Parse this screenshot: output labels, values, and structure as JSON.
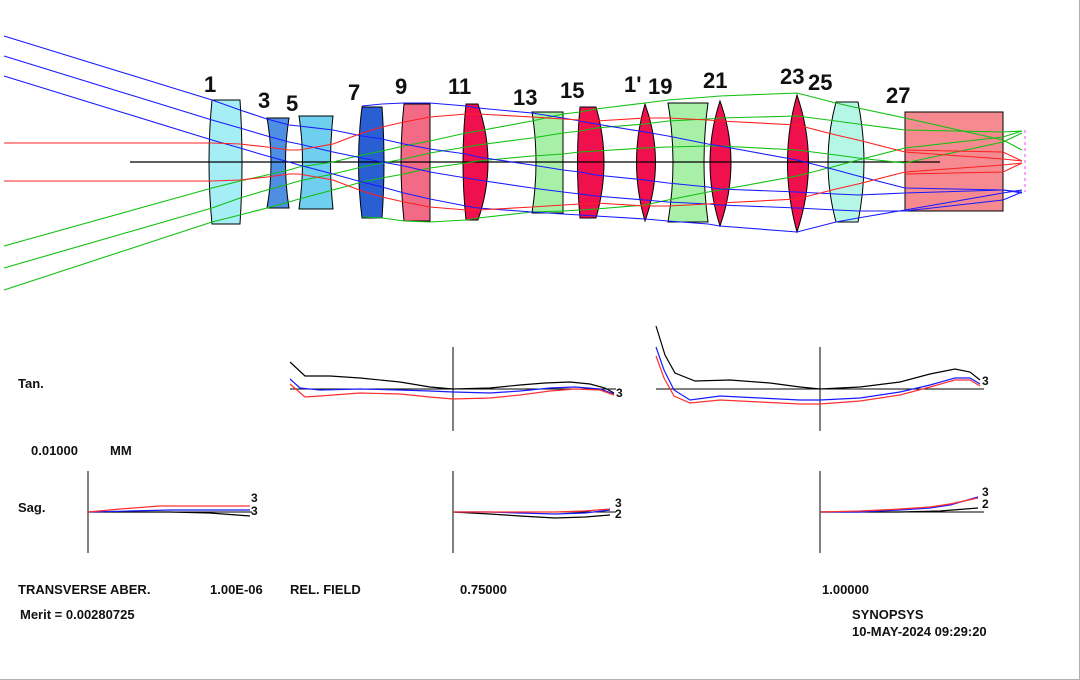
{
  "colors": {
    "ray_axial": "#ff2020",
    "ray_field_mid": "#1a1aff",
    "ray_field_edge": "#10c010",
    "axis": "#000000",
    "curve_black": "#000000",
    "curve_blue": "#1a1aff",
    "curve_red": "#ff3030"
  },
  "surface_labels": [
    "1",
    "3",
    "5",
    "7",
    "9",
    "11",
    "13",
    "15",
    "1'",
    "19",
    "21",
    "23",
    "25",
    "27"
  ],
  "elements": [
    {
      "name": "lens-1",
      "color": "#a6eef6"
    },
    {
      "name": "lens-3",
      "color": "#4f8fe3"
    },
    {
      "name": "lens-5",
      "color": "#6fcfef"
    },
    {
      "name": "lens-7",
      "color": "#2a5fd4"
    },
    {
      "name": "lens-9",
      "color": "#f26a86"
    },
    {
      "name": "lens-11",
      "color": "#f0104e"
    },
    {
      "name": "lens-13",
      "color": "#a8f0a8"
    },
    {
      "name": "lens-15",
      "color": "#f0104e"
    },
    {
      "name": "lens-17",
      "color": "#f0104e"
    },
    {
      "name": "lens-19",
      "color": "#a8f0a8"
    },
    {
      "name": "lens-21",
      "color": "#f0104e"
    },
    {
      "name": "lens-23",
      "color": "#f0104e"
    },
    {
      "name": "lens-25",
      "color": "#b6f6e6"
    },
    {
      "name": "prism-27",
      "color": "#f58a90"
    }
  ],
  "aberration": {
    "tan_label": "Tan.",
    "sag_label": "Sag.",
    "scale_value": "0.01000",
    "scale_unit": "MM",
    "curve_end_labels": [
      "3",
      "2"
    ]
  },
  "footer": {
    "transverse_label": "TRANSVERSE ABER.",
    "wavelength_value": "1.00E-06",
    "rel_field_label": "REL. FIELD",
    "field_mid": "0.75000",
    "field_full": "1.00000",
    "merit": "Merit = 0.00280725",
    "program": "SYNOPSYS",
    "timestamp": "10-MAY-2024 09:29:20"
  }
}
